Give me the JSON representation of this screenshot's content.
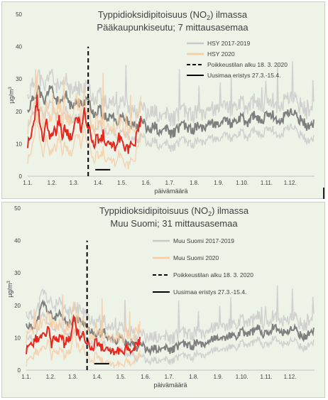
{
  "chart_data": [
    {
      "type": "line",
      "title_pre": "Typpidioksidipitoisuus (NO",
      "title_sub": "2",
      "title_post": ") ilmassa",
      "subtitle": "Pääkaupunkiseutu; 7 mittausasemaa",
      "ylabel_base": "µg/m",
      "ylabel_sup": "3",
      "xlabel": "päivämäärä",
      "ylim": [
        0,
        50
      ],
      "yticks": [
        "0",
        "10",
        "20",
        "30",
        "40",
        "50"
      ],
      "xticks": [
        "1.1.",
        "1.2.",
        "1.3.",
        "1.4.",
        "1.5.",
        "1.6.",
        "1.7.",
        "1.8.",
        "1.9.",
        "1.10.",
        "1.11.",
        "1.12."
      ],
      "grid": false,
      "legend_position": "right",
      "legend": [
        {
          "label": "HSY 2017-2019",
          "style": "grey-band"
        },
        {
          "label": "HSY 2020",
          "style": "orange-band"
        },
        {
          "label": "Poikkeustilan alku 18. 3. 2020",
          "style": "dashed"
        },
        {
          "label": "Uusimaa eristys 27.3.-15.4.",
          "style": "solid"
        }
      ],
      "series": [
        {
          "name": "HSY 2017-2019",
          "x_days": [
            1,
            8,
            15,
            22,
            29,
            36,
            43,
            50,
            57,
            64,
            71,
            78,
            85,
            92,
            99,
            106,
            113,
            120,
            127,
            134,
            141,
            148,
            155,
            162,
            169,
            176,
            183,
            190,
            197,
            204,
            211,
            218,
            225,
            232,
            239,
            246,
            253,
            260,
            267,
            274,
            281,
            288,
            295,
            302,
            309,
            316,
            323,
            330,
            337,
            344,
            351,
            358,
            365
          ],
          "values": [
            20,
            24,
            27,
            22,
            28,
            24,
            22,
            25,
            21,
            23,
            22,
            24,
            19,
            21,
            18,
            19,
            17,
            18,
            17,
            16,
            16,
            17,
            14,
            16,
            13,
            15,
            13,
            14,
            16,
            15,
            14,
            16,
            15,
            17,
            16,
            15,
            18,
            16,
            17,
            18,
            16,
            19,
            17,
            18,
            20,
            18,
            17,
            19,
            20,
            18,
            17,
            15,
            16
          ]
        },
        {
          "name": "HSY 2020",
          "x_days": [
            1,
            5,
            9,
            13,
            17,
            21,
            25,
            29,
            33,
            37,
            41,
            45,
            49,
            53,
            57,
            61,
            65,
            69,
            73,
            77,
            81,
            85,
            89,
            93,
            97,
            101,
            105,
            109,
            113,
            117,
            121,
            125,
            129,
            133,
            137,
            141,
            145
          ],
          "values": [
            10,
            12,
            16,
            24,
            15,
            12,
            17,
            11,
            14,
            13,
            18,
            12,
            15,
            13,
            11,
            16,
            18,
            14,
            20,
            16,
            14,
            10,
            12,
            11,
            13,
            9,
            11,
            10,
            8,
            12,
            10,
            9,
            8,
            11,
            10,
            14,
            17
          ]
        }
      ],
      "markers": {
        "dashed_day": 78,
        "dashed_top": 40,
        "solid_from_day": 87,
        "solid_to_day": 106,
        "solid_y": 2
      }
    },
    {
      "type": "line",
      "title_pre": "Typpidioksidipitoisuus (NO",
      "title_sub": "2",
      "title_post": ") ilmassa",
      "subtitle": "Muu Suomi; 31 mittausasemaa",
      "ylabel_base": "µg/m",
      "ylabel_sup": "3",
      "xlabel": "päivämäärä",
      "ylim": [
        0,
        50
      ],
      "yticks": [
        "0",
        "10",
        "20",
        "30",
        "40",
        "50"
      ],
      "xticks": [
        "1.1.",
        "1.2.",
        "1.3.",
        "1.4.",
        "1.5.",
        "1.6.",
        "1.7.",
        "1.8.",
        "1.9.",
        "1.10.",
        "1.11.",
        "1.12."
      ],
      "grid": false,
      "legend_position": "right",
      "legend": [
        {
          "label": "Muu Suomi 2017-2019",
          "style": "grey-band"
        },
        {
          "label": "Muu Suomi 2020",
          "style": "orange-band"
        },
        {
          "label": "Poikkeustilan alku 18. 3. 2020",
          "style": "dashed"
        },
        {
          "label": "Uusimaa eristys 27.3.-15.4.",
          "style": "solid"
        }
      ],
      "series": [
        {
          "name": "Muu Suomi 2017-2019",
          "x_days": [
            1,
            8,
            15,
            22,
            29,
            36,
            43,
            50,
            57,
            64,
            71,
            78,
            85,
            92,
            99,
            106,
            113,
            120,
            127,
            134,
            141,
            148,
            155,
            162,
            169,
            176,
            183,
            190,
            197,
            204,
            211,
            218,
            225,
            232,
            239,
            246,
            253,
            260,
            267,
            274,
            281,
            288,
            295,
            302,
            309,
            316,
            323,
            330,
            337,
            344,
            351,
            358,
            365
          ],
          "values": [
            14,
            13,
            15,
            21,
            18,
            16,
            17,
            15,
            14,
            16,
            15,
            13,
            12,
            11,
            12,
            10,
            9,
            10,
            8,
            9,
            7,
            8,
            6,
            7,
            6,
            7,
            6,
            7,
            8,
            8,
            7,
            9,
            8,
            9,
            10,
            9,
            10,
            11,
            10,
            12,
            11,
            12,
            13,
            11,
            12,
            14,
            12,
            11,
            13,
            12,
            10,
            11,
            12
          ]
        },
        {
          "name": "Muu Suomi 2020",
          "x_days": [
            1,
            5,
            9,
            13,
            17,
            21,
            25,
            29,
            33,
            37,
            41,
            45,
            49,
            53,
            57,
            61,
            65,
            69,
            73,
            77,
            81,
            85,
            89,
            93,
            97,
            101,
            105,
            109,
            113,
            117,
            121,
            125,
            129,
            133,
            137,
            141,
            145
          ],
          "values": [
            6,
            8,
            7,
            10,
            9,
            12,
            10,
            13,
            8,
            10,
            9,
            11,
            8,
            10,
            9,
            16,
            12,
            10,
            11,
            9,
            8,
            7,
            9,
            8,
            7,
            6,
            7,
            6,
            5,
            6,
            5,
            6,
            7,
            6,
            7,
            8,
            9
          ]
        }
      ],
      "markers": {
        "dashed_day": 78,
        "dashed_top": 40,
        "solid_from_day": 87,
        "solid_to_day": 106,
        "solid_y": 2
      }
    }
  ]
}
